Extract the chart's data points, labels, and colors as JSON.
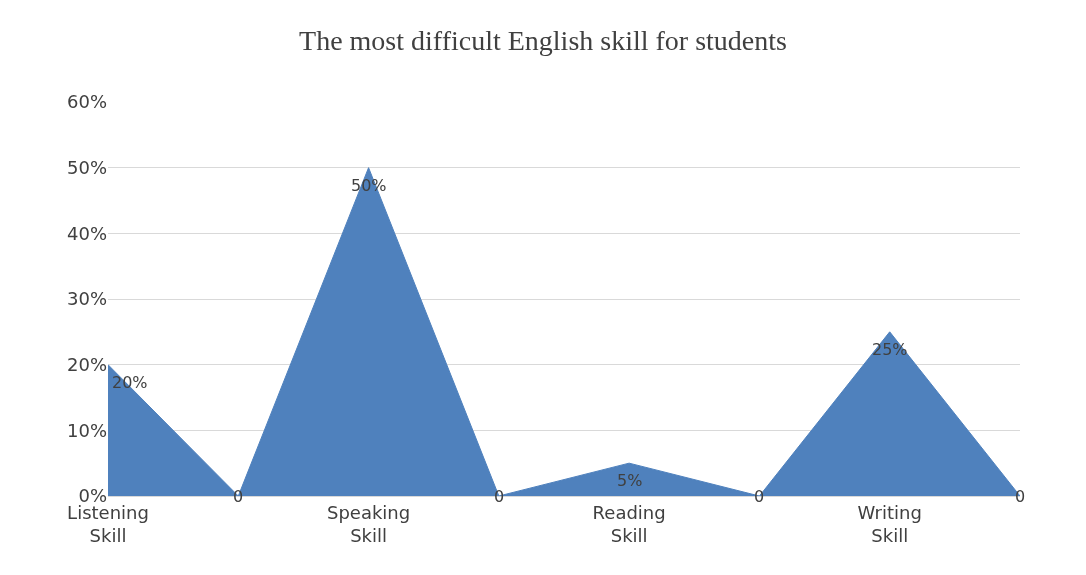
{
  "chart_data": {
    "type": "area",
    "title": "The most difficult English skill for students",
    "categories": [
      "Listening Skill",
      null,
      "Speaking Skill",
      null,
      "Reading Skill",
      null,
      "Writing Skill",
      null
    ],
    "values": [
      20,
      0,
      50,
      0,
      5,
      0,
      25,
      0
    ],
    "value_labels": [
      "20%",
      "0",
      "50%",
      "0",
      "5%",
      "0",
      "25%",
      "0"
    ],
    "color": "#4f81bd",
    "ylim": [
      0,
      60
    ],
    "yticks": [
      {
        "value": 0,
        "label": "0%"
      },
      {
        "value": 10,
        "label": "10%"
      },
      {
        "value": 20,
        "label": "20%"
      },
      {
        "value": 30,
        "label": "30%"
      },
      {
        "value": 40,
        "label": "40%"
      },
      {
        "value": 50,
        "label": "50%"
      },
      {
        "value": 60,
        "label": "60%"
      }
    ],
    "grid": "y",
    "legend": false
  }
}
